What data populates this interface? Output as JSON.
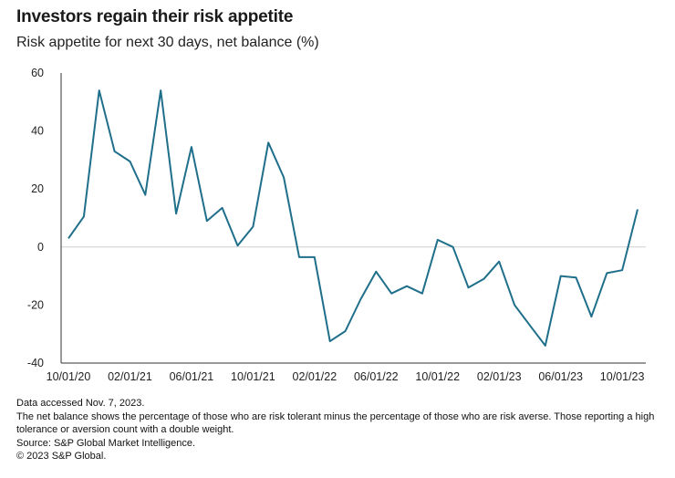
{
  "title": "Investors regain their risk appetite",
  "subtitle": "Risk appetite for next 30 days, net balance (%)",
  "notes": {
    "accessed": "Data accessed Nov. 7, 2023.",
    "definition": "The net balance shows the percentage of those who are risk tolerant minus the percentage of those who are risk averse. Those reporting a high tolerance or aversion count with a double weight.",
    "source": "Source: S&P Global Market Intelligence.",
    "copyright": "© 2023 S&P Global."
  },
  "colors": {
    "line": "#1f6f8b",
    "axis": "#333333",
    "zero": "#cfcfcf"
  },
  "chart_data": {
    "type": "line",
    "title": "Investors regain their risk appetite",
    "subtitle": "Risk appetite for next 30 days, net balance (%)",
    "xlabel": "",
    "ylabel": "",
    "ylim": [
      -40,
      60
    ],
    "yticks": [
      60,
      40,
      20,
      0,
      -20,
      -40
    ],
    "xticks": [
      "10/01/20",
      "02/01/21",
      "06/01/21",
      "10/01/21",
      "02/01/22",
      "06/01/22",
      "10/01/22",
      "02/01/23",
      "06/01/23",
      "10/01/23"
    ],
    "grid": false,
    "x": [
      "2020-10",
      "2020-11",
      "2020-12",
      "2021-01",
      "2021-02",
      "2021-03",
      "2021-04",
      "2021-05",
      "2021-06",
      "2021-07",
      "2021-08",
      "2021-09",
      "2021-10",
      "2021-11",
      "2021-12",
      "2022-01",
      "2022-02",
      "2022-03",
      "2022-04",
      "2022-05",
      "2022-06",
      "2022-07",
      "2022-08",
      "2022-09",
      "2022-10",
      "2022-11",
      "2022-12",
      "2023-01",
      "2023-02",
      "2023-03",
      "2023-04",
      "2023-05",
      "2023-06",
      "2023-07",
      "2023-08",
      "2023-09",
      "2023-10",
      "2023-11"
    ],
    "values": [
      3,
      10.5,
      54,
      33,
      29.5,
      18,
      54,
      11.5,
      34.5,
      9,
      13.5,
      0.5,
      7,
      36,
      24,
      -3.5,
      -3.5,
      -32.5,
      -29,
      -18,
      -8.5,
      -16,
      -13.5,
      -16,
      2.5,
      0,
      -14,
      -11,
      -5,
      -20,
      -27,
      -34,
      -10,
      -10.5,
      -24,
      -9,
      -8,
      13
    ]
  }
}
